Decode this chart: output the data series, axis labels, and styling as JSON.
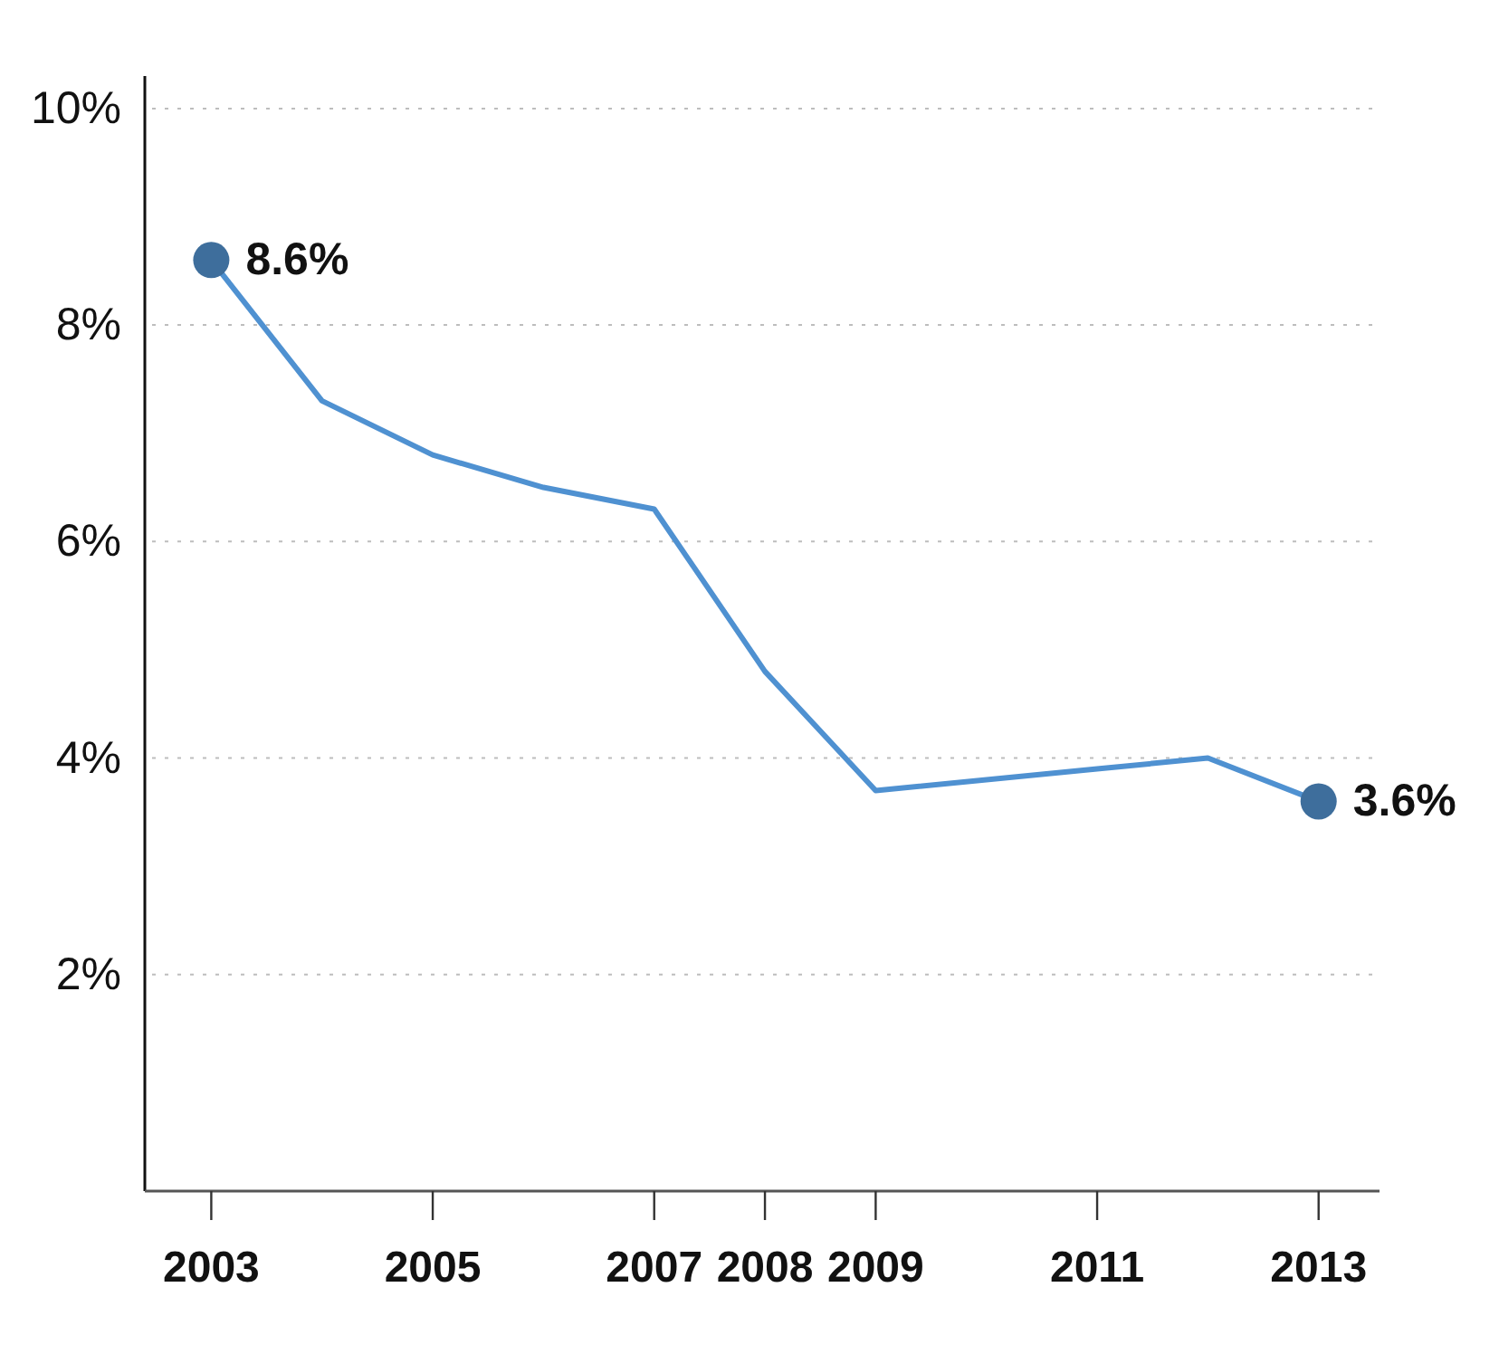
{
  "chart_data": {
    "type": "line",
    "x": [
      2003,
      2004,
      2005,
      2006,
      2007,
      2008,
      2009,
      2011,
      2012,
      2013
    ],
    "series": [
      {
        "color": "#4f91d1",
        "values": [
          8.6,
          7.3,
          6.8,
          6.5,
          6.3,
          4.8,
          3.7,
          3.9,
          4.0,
          3.6
        ]
      },
      {
        "type": "scatter",
        "x": [
          2003,
          2013
        ],
        "color": "#3e6e9c",
        "marker": "circle",
        "values": [
          8.6,
          3.6
        ],
        "value_labels": [
          "8.6%",
          "3.6%"
        ]
      }
    ],
    "xlim": [
      2002.4,
      2013.55
    ],
    "xticks": [
      2003,
      2005,
      2007,
      2008,
      2009,
      2011,
      2013
    ],
    "ylim": [
      0,
      10.3
    ],
    "yticks": [
      {
        "value": 2,
        "label": "2%"
      },
      {
        "value": 4,
        "label": "4%"
      },
      {
        "value": 6,
        "label": "6%"
      },
      {
        "value": 8,
        "label": "8%"
      },
      {
        "value": 10,
        "label": "10%"
      }
    ],
    "grid": "y"
  }
}
